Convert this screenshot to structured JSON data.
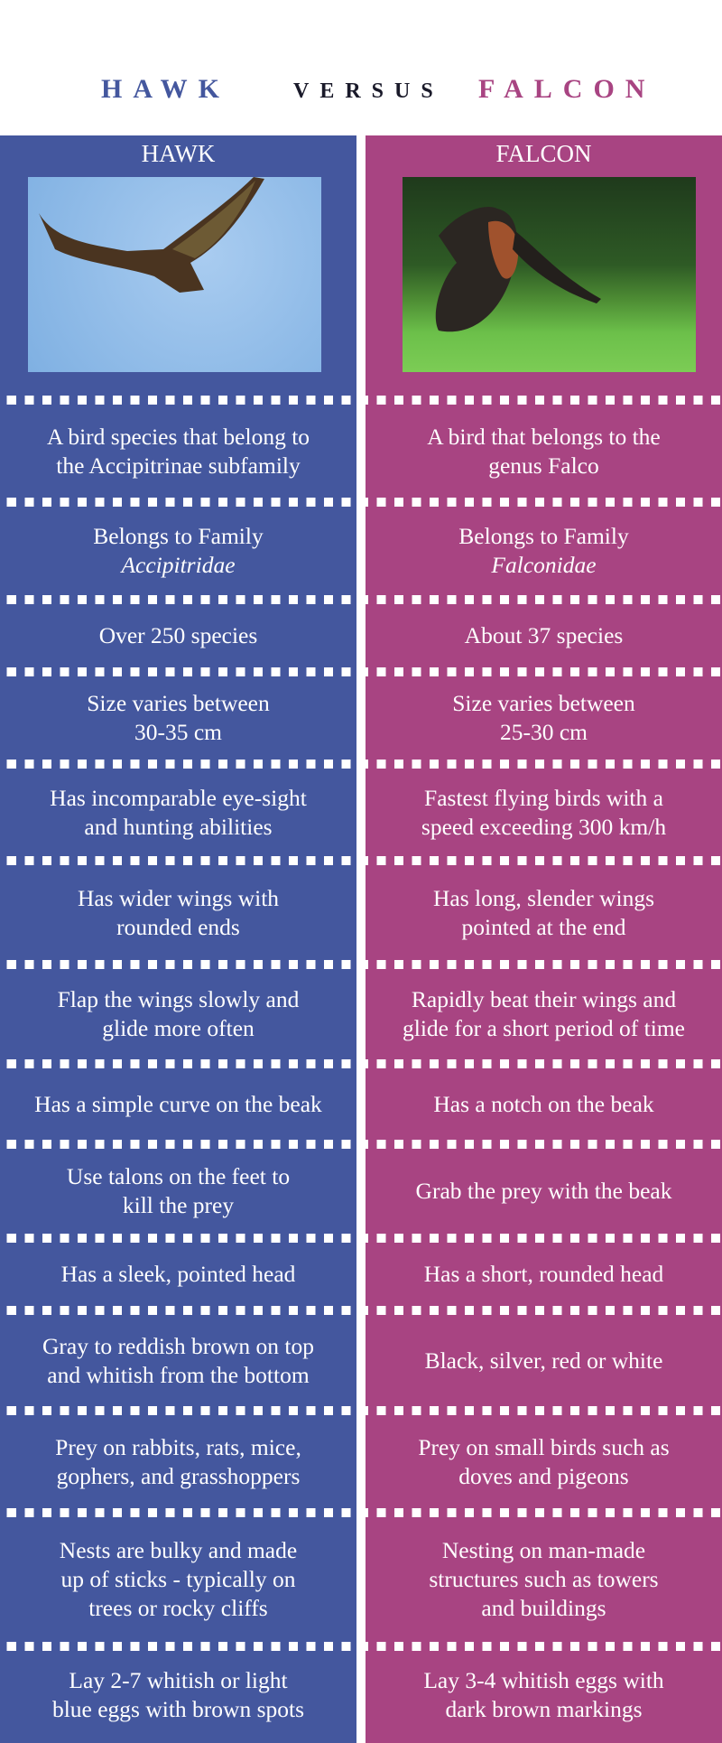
{
  "header": {
    "left": "HAWK",
    "middle": "VERSUS",
    "right": "FALCON"
  },
  "colors": {
    "hawk": "#44579e",
    "falcon": "#a84482",
    "versus": "#1a1a2a"
  },
  "columns": {
    "left": {
      "title": "HAWK",
      "image": "hawk-photo"
    },
    "right": {
      "title": "FALCON",
      "image": "falcon-photo"
    }
  },
  "rows": [
    {
      "hawk": "A bird species that belong to\nthe Accipitrinae subfamily",
      "falcon": "A bird that belongs to the\ngenus Falco"
    },
    {
      "hawk": "Belongs to Family",
      "hawk_italic": "Accipitridae",
      "falcon": "Belongs to Family",
      "falcon_italic": "Falconidae"
    },
    {
      "hawk": "Over 250 species",
      "falcon": "About 37 species"
    },
    {
      "hawk": "Size varies between\n30-35 cm",
      "falcon": "Size varies between\n25-30 cm"
    },
    {
      "hawk": "Has incomparable eye-sight\nand hunting abilities",
      "falcon": "Fastest flying birds with a\nspeed exceeding 300 km/h"
    },
    {
      "hawk": "Has wider wings with\nrounded ends",
      "falcon": "Has long, slender wings\npointed at the end"
    },
    {
      "hawk": "Flap the wings slowly and\nglide more often",
      "falcon": "Rapidly beat their wings and\nglide for a short period of time"
    },
    {
      "hawk": "Has a simple curve on the beak",
      "falcon": "Has a notch on the beak"
    },
    {
      "hawk": "Use talons on the feet to\nkill the prey",
      "falcon": "Grab the prey with the beak"
    },
    {
      "hawk": "Has a sleek, pointed head",
      "falcon": "Has a short, rounded head"
    },
    {
      "hawk": "Gray to reddish brown on top\nand whitish from the bottom",
      "falcon": "Black, silver, red or white"
    },
    {
      "hawk": "Prey on rabbits, rats, mice,\ngophers, and grasshoppers",
      "falcon": "Prey on small birds such as\ndoves and pigeons"
    },
    {
      "hawk": "Nests are bulky and made\nup of sticks - typically on\ntrees or rocky cliffs",
      "falcon": "Nesting on man-made\nstructures such as towers\nand buildings"
    },
    {
      "hawk": "Lay 2-7 whitish or light\nblue eggs with brown spots",
      "falcon": "Lay 3-4 whitish eggs with\ndark brown markings"
    }
  ]
}
